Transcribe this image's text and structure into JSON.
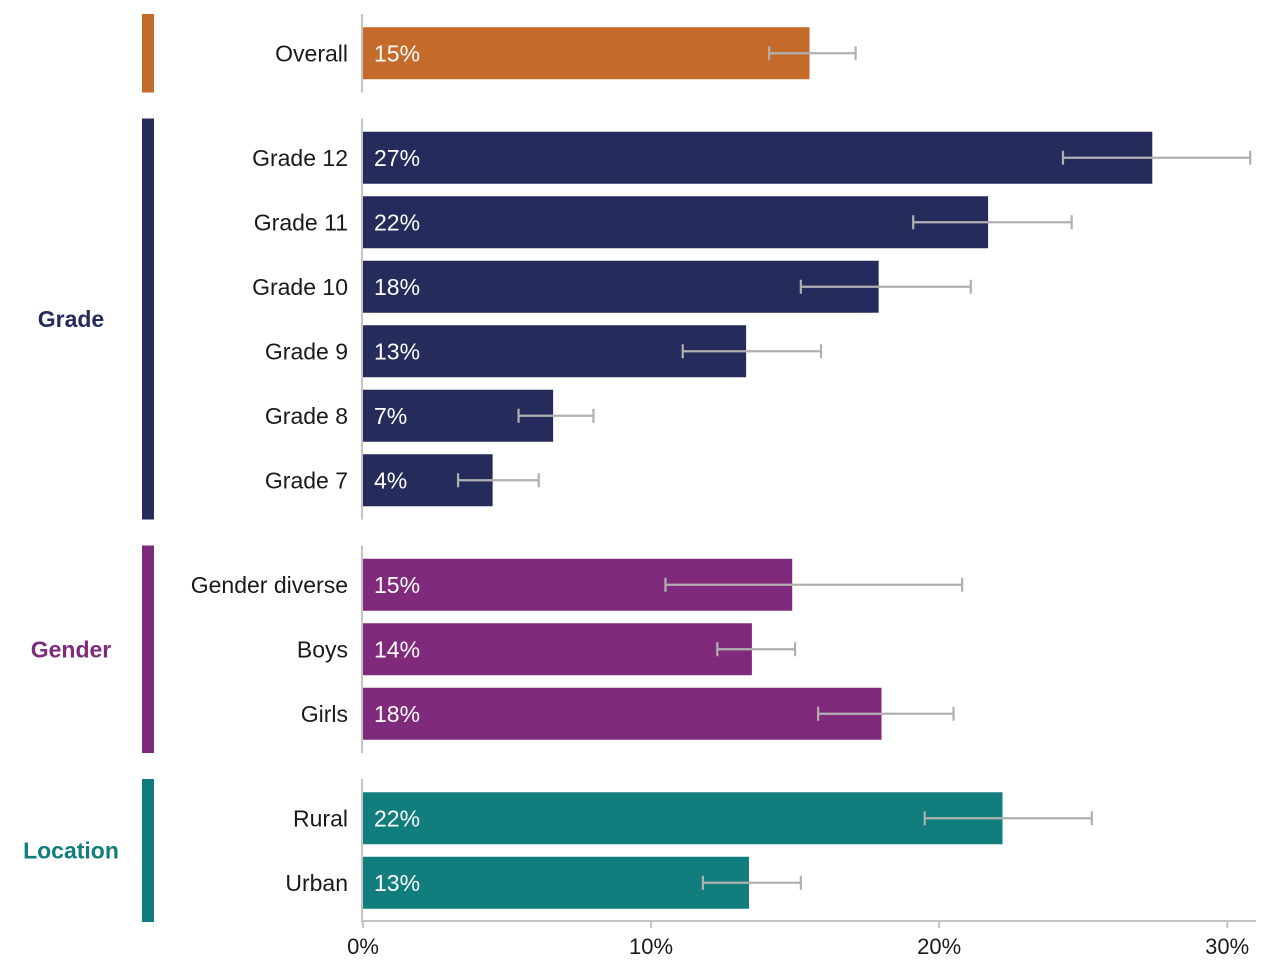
{
  "chart_data": {
    "type": "bar",
    "orientation": "horizontal",
    "xlim": [
      0,
      31
    ],
    "x_ticks": [
      0,
      10,
      20,
      30
    ],
    "x_tick_labels": [
      "0%",
      "10%",
      "20%",
      "30%"
    ],
    "error_bar_color": "#b0b0b0",
    "groups": [
      {
        "name": "",
        "color": "#c46a2b",
        "items": [
          {
            "label": "Overall",
            "value": 15.5,
            "display": "15%",
            "ci": [
              14.1,
              17.1
            ]
          }
        ]
      },
      {
        "name": "Grade",
        "color": "#252c5c",
        "items": [
          {
            "label": "Grade 12",
            "value": 27.4,
            "display": "27%",
            "ci": [
              24.3,
              30.8
            ]
          },
          {
            "label": "Grade 11",
            "value": 21.7,
            "display": "22%",
            "ci": [
              19.1,
              24.6
            ]
          },
          {
            "label": "Grade 10",
            "value": 17.9,
            "display": "18%",
            "ci": [
              15.2,
              21.1
            ]
          },
          {
            "label": "Grade 9",
            "value": 13.3,
            "display": "13%",
            "ci": [
              11.1,
              15.9
            ]
          },
          {
            "label": "Grade 8",
            "value": 6.6,
            "display": "7%",
            "ci": [
              5.4,
              8.0
            ]
          },
          {
            "label": "Grade 7",
            "value": 4.5,
            "display": "4%",
            "ci": [
              3.3,
              6.1
            ]
          }
        ]
      },
      {
        "name": "Gender",
        "color": "#7f2a7a",
        "items": [
          {
            "label": "Gender diverse",
            "value": 14.9,
            "display": "15%",
            "ci": [
              10.5,
              20.8
            ]
          },
          {
            "label": "Boys",
            "value": 13.5,
            "display": "14%",
            "ci": [
              12.3,
              15.0
            ]
          },
          {
            "label": "Girls",
            "value": 18.0,
            "display": "18%",
            "ci": [
              15.8,
              20.5
            ]
          }
        ]
      },
      {
        "name": "Location",
        "color": "#117d7d",
        "items": [
          {
            "label": "Rural",
            "value": 22.2,
            "display": "22%",
            "ci": [
              19.5,
              25.3
            ]
          },
          {
            "label": "Urban",
            "value": 13.4,
            "display": "13%",
            "ci": [
              11.8,
              15.2
            ]
          }
        ]
      }
    ]
  }
}
